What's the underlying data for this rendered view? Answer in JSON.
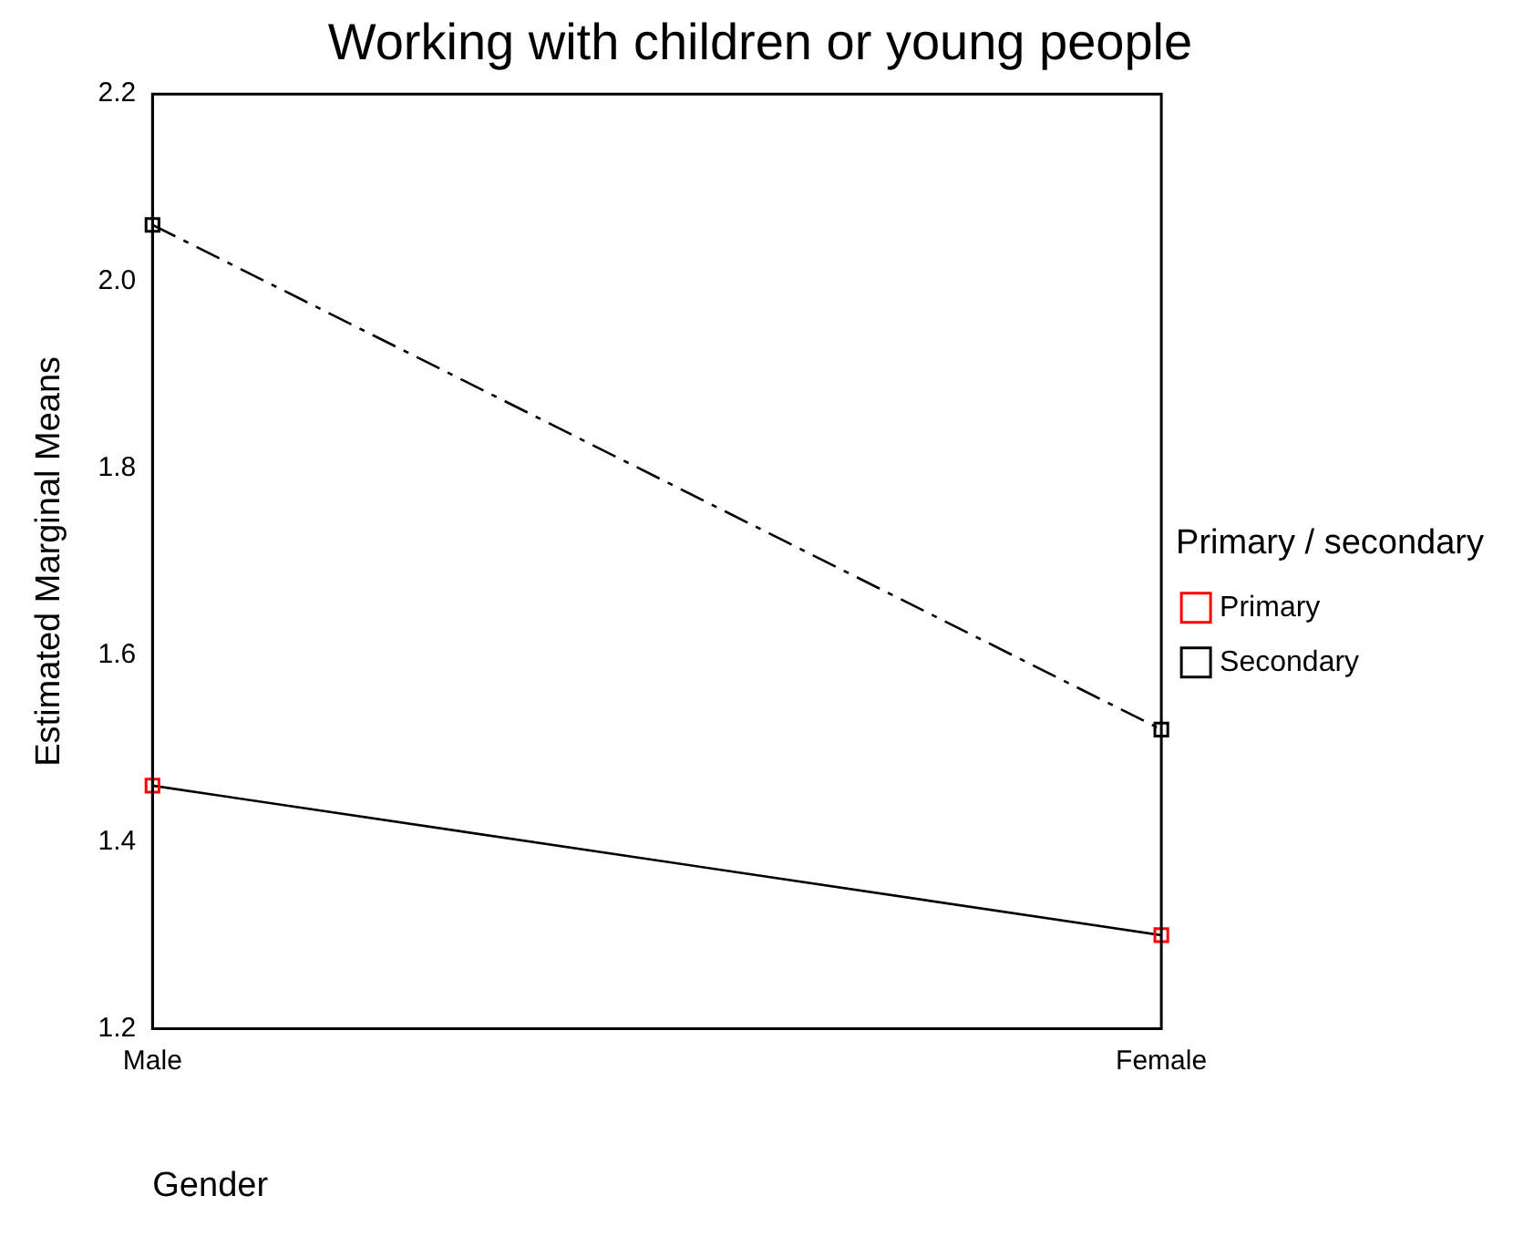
{
  "chart_data": {
    "type": "line",
    "title": "Working with children or young people",
    "xlabel": "Gender",
    "ylabel": "Estimated Marginal Means",
    "legend_title": "Primary / secondary",
    "categories": [
      "Male",
      "Female"
    ],
    "series": [
      {
        "name": "Primary",
        "color": "#ff0000",
        "values": [
          1.46,
          1.3
        ],
        "line_style": "solid"
      },
      {
        "name": "Secondary",
        "color": "#000000",
        "values": [
          2.06,
          1.52
        ],
        "line_style": "dashed"
      }
    ],
    "ylim": [
      1.2,
      2.2
    ],
    "yticks": [
      1.2,
      1.4,
      1.6,
      1.8,
      {
        "value": 2,
        "label": "2.0"
      },
      2.2
    ],
    "grid": false,
    "legend": "right",
    "marker": "square"
  }
}
